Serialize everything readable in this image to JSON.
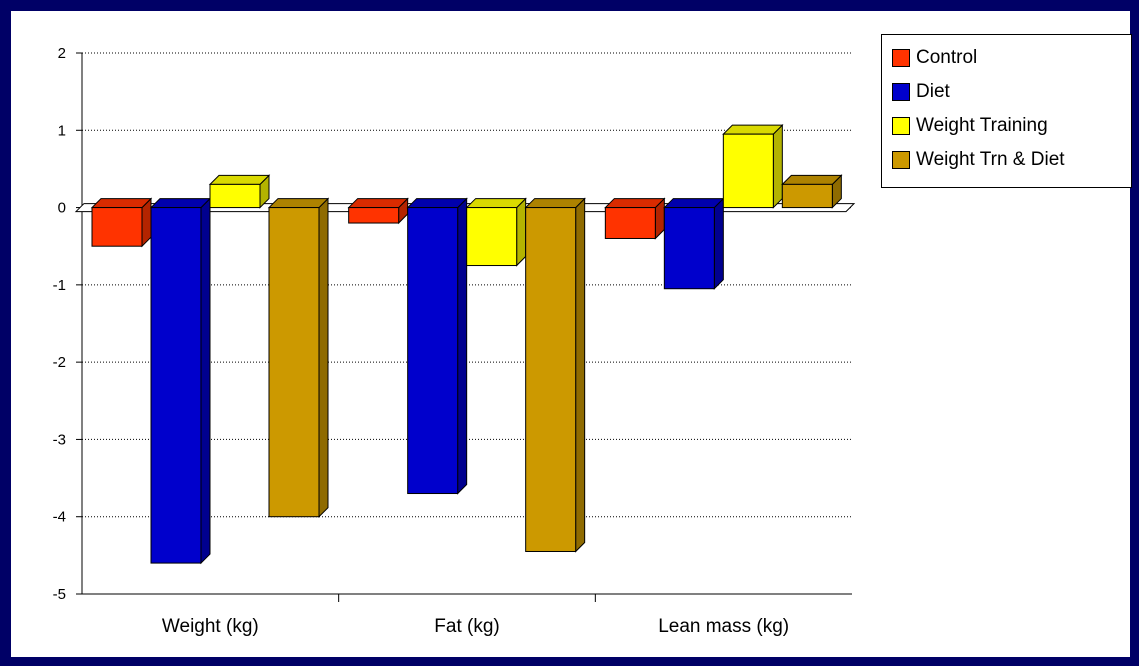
{
  "chart_data": {
    "type": "bar",
    "title": "",
    "xlabel": "",
    "ylabel": "",
    "categories": [
      "Weight (kg)",
      "Fat (kg)",
      "Lean mass (kg)"
    ],
    "ylim": [
      -5,
      2
    ],
    "yticks": [
      2,
      1,
      0,
      -1,
      -2,
      -3,
      -4,
      -5
    ],
    "grid": true,
    "legend_position": "top-right",
    "series": [
      {
        "name": "Control",
        "color": "#ff3300",
        "values": [
          -0.5,
          -0.2,
          -0.4
        ]
      },
      {
        "name": "Diet",
        "color": "#0000cc",
        "values": [
          -4.6,
          -3.7,
          -1.05
        ]
      },
      {
        "name": "Weight Training",
        "color": "#ffff00",
        "values": [
          0.3,
          -0.75,
          0.95
        ]
      },
      {
        "name": "Weight Trn & Diet",
        "color": "#cc9900",
        "values": [
          -4.0,
          -4.45,
          0.3
        ]
      }
    ]
  }
}
